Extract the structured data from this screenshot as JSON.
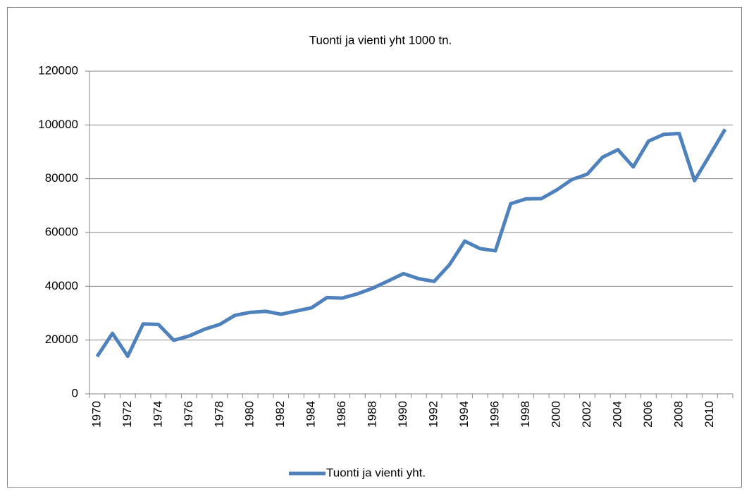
{
  "chart_data": {
    "type": "line",
    "title": "Tuonti ja vienti yht 1000 tn.",
    "categories": [
      "1970",
      null,
      "1972",
      null,
      "1974",
      null,
      "1976",
      null,
      "1978",
      null,
      "1980",
      null,
      "1982",
      null,
      "1984",
      null,
      "1986",
      null,
      "1988",
      null,
      "1990",
      null,
      "1992",
      null,
      "1994",
      null,
      "1996",
      null,
      "1998",
      null,
      "2000",
      null,
      "2002",
      null,
      "2004",
      null,
      "2006",
      null,
      "2008",
      null,
      "2010",
      null
    ],
    "series": [
      {
        "name": "Tuonti ja vienti yht.",
        "color": "#4f81bd",
        "values": [
          13900,
          22500,
          14000,
          26000,
          25800,
          19900,
          21500,
          24000,
          25800,
          29200,
          30300,
          30700,
          29600,
          30800,
          32000,
          35800,
          35600,
          37200,
          39300,
          42000,
          44700,
          42800,
          41800,
          48000,
          56800,
          54000,
          53200,
          70700,
          72500,
          72600,
          75800,
          79700,
          81700,
          88000,
          90800,
          84400,
          94000,
          96500,
          96800,
          79300,
          88800,
          98400
        ]
      }
    ],
    "ylim": [
      0,
      120000
    ],
    "yticks": [
      0,
      20000,
      40000,
      60000,
      80000,
      100000,
      120000
    ],
    "grid": true,
    "legend": "bottom"
  }
}
